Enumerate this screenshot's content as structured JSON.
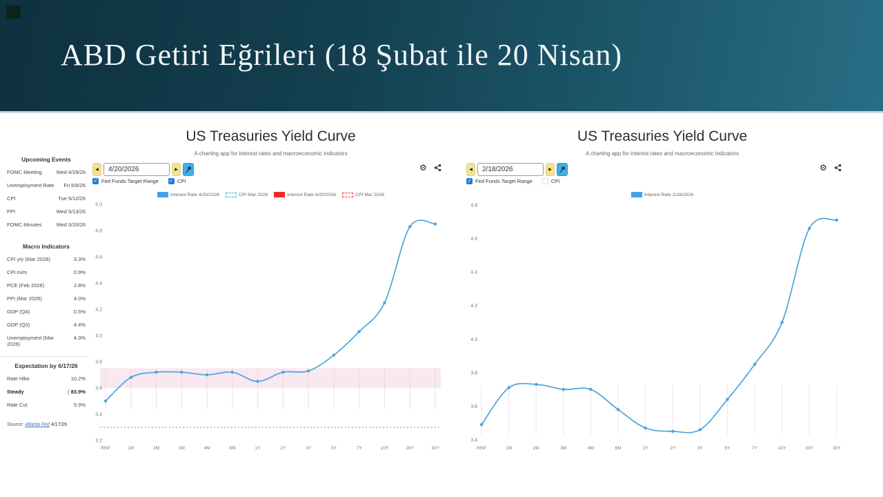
{
  "banner": {
    "title": "ABD Getiri Eğrileri (18 Şubat ile 20 Nisan)"
  },
  "sidebar": {
    "upcoming_events": {
      "title": "Upcoming Events",
      "rows": [
        {
          "label": "FOMC Meeting",
          "value": "Wed 4/29/26"
        },
        {
          "label": "Unemployment Rate",
          "value": "Fri 5/8/26"
        },
        {
          "label": "CPI",
          "value": "Tue 5/12/26"
        },
        {
          "label": "PPI",
          "value": "Wed 5/13/26"
        },
        {
          "label": "FOMC Minutes",
          "value": "Wed 5/20/26"
        }
      ]
    },
    "macro_indicators": {
      "title": "Macro Indicators",
      "rows": [
        {
          "label": "CPI y/y (Mar 2026)",
          "value": "3.3%"
        },
        {
          "label": "CPI m/m",
          "value": "0.9%"
        },
        {
          "label": "PCE (Feb 2026)",
          "value": "2.8%"
        },
        {
          "label": "PPI (Mar 2026)",
          "value": "4.0%"
        },
        {
          "label": "GDP (Q4)",
          "value": "0.5%"
        },
        {
          "label": "GDP (Q3)",
          "value": "4.4%"
        },
        {
          "label": "Unemployment (Mar 2026)",
          "value": "4.3%"
        }
      ]
    },
    "expectation": {
      "title": "Expectation by 6/17/26",
      "rows": [
        {
          "label": "Rate Hike",
          "value": "10.2%",
          "bold": false
        },
        {
          "label": "Steady",
          "value": "83.9%",
          "bold": true,
          "icon": "pointer-icon"
        },
        {
          "label": "Rate Cut",
          "value": "5.9%",
          "bold": false
        }
      ]
    },
    "source": {
      "prefix": "Source:",
      "link": "Atlanta Fed",
      "date": "4/17/26"
    }
  },
  "panels": [
    {
      "title": "US Treasuries Yield Curve",
      "subtitle": "A charting app for interest rates and macroeconomic indicators",
      "date_value": "4/20/2026",
      "checkboxes": [
        {
          "label": "Fed Funds Target Range",
          "checked": true
        },
        {
          "label": "CPI",
          "checked": true
        }
      ],
      "legend": [
        {
          "label": "Interest Rate 4/20/2026",
          "swatch": "solid",
          "color": "#3fa4ee"
        },
        {
          "label": "CPI Mar 2026",
          "swatch": "dashed",
          "color": "#3bb0c9"
        },
        {
          "label": "Interest Rate 4/20/2026",
          "swatch": "solid",
          "color": "#ee2c24"
        },
        {
          "label": "CPI Mar 2026",
          "swatch": "dashed",
          "color": "#e23b3b"
        }
      ]
    },
    {
      "title": "US Treasuries Yield Curve",
      "subtitle": "A charting app for interest rates and macroeconomic indicators",
      "date_value": "2/18/2026",
      "checkboxes": [
        {
          "label": "Fed Funds Target Range",
          "checked": true
        },
        {
          "label": "CPI",
          "checked": false
        }
      ],
      "legend": [
        {
          "label": "Interest Rate 2/18/2026",
          "swatch": "solid",
          "color": "#3fa4ee"
        }
      ]
    }
  ],
  "chart_data": [
    {
      "type": "line",
      "title": "US Treasuries Yield Curve",
      "categories": [
        "RRP",
        "1M",
        "2M",
        "3M",
        "4M",
        "6M",
        "1Y",
        "2Y",
        "3Y",
        "5Y",
        "7Y",
        "10Y",
        "20Y",
        "30Y"
      ],
      "series": [
        {
          "name": "Interest Rate 4/20/2026",
          "color": "#4aa3dd",
          "values": [
            3.5,
            3.68,
            3.72,
            3.72,
            3.7,
            3.72,
            3.65,
            3.72,
            3.73,
            3.85,
            4.03,
            4.25,
            4.83,
            4.85
          ]
        }
      ],
      "ylim": [
        3.2,
        5.0
      ],
      "yticks": [
        "5.0",
        "4.8",
        "4.6",
        "4.4",
        "4.2",
        "4.0",
        "3.8",
        "3.6",
        "3.4",
        "3.2"
      ],
      "band": {
        "name": "Fed Funds Target Range",
        "from": 3.6,
        "to": 3.75,
        "color": "rgba(242,214,226,0.55)"
      },
      "hline": {
        "name": "CPI Mar 2026",
        "value": 3.3,
        "color": "#3aa9a2"
      },
      "vgrid": {
        "from": 3.75,
        "to": 3.44,
        "color": "rgba(224,176,196,0.45)"
      },
      "xlabel": "",
      "ylabel": "",
      "legend_position": "top"
    },
    {
      "type": "line",
      "title": "US Treasuries Yield Curve",
      "categories": [
        "RRP",
        "1M",
        "2M",
        "3M",
        "4M",
        "6M",
        "1Y",
        "2Y",
        "3Y",
        "5Y",
        "7Y",
        "10Y",
        "20Y",
        "30Y"
      ],
      "series": [
        {
          "name": "Interest Rate 2/18/2026",
          "color": "#4aa3dd",
          "values": [
            3.49,
            3.71,
            3.73,
            3.7,
            3.7,
            3.58,
            3.47,
            3.45,
            3.46,
            3.64,
            3.85,
            4.1,
            4.66,
            4.71
          ]
        }
      ],
      "ylim": [
        3.4,
        4.8
      ],
      "yticks": [
        "4.8",
        "4.6",
        "4.4",
        "4.2",
        "4.0",
        "3.8",
        "3.6",
        "3.4"
      ],
      "band": null,
      "hline": null,
      "vgrid": {
        "from": 3.73,
        "to": 3.43,
        "color": "rgba(216,200,230,0.5)"
      },
      "xlabel": "",
      "ylabel": "",
      "legend_position": "top"
    }
  ]
}
